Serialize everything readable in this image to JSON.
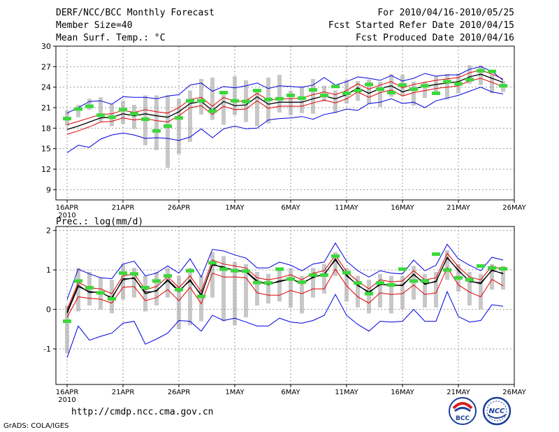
{
  "header": {
    "title": "DERF/NCC/BCC Monthly Forecast",
    "member_size": "Member Size=40",
    "variable": "Mean Surf. Temp.: °C",
    "forecast_window": "For 2010/04/16-2010/05/25",
    "refer_date": "Fcst Started Refer Date 2010/04/15",
    "produced_date": "Fcst Produced Date 2010/04/16"
  },
  "footer": {
    "url": "http://cmdp.ncc.cma.gov.cn",
    "credit": "GrADS: COLA/IGES",
    "logo_bcc": "BCC",
    "logo_ncc": "NCC"
  },
  "colors": {
    "ensemble_mean": "#000000",
    "inner_band": "#e00000",
    "outer_band": "#0000e0",
    "member_box": "#c8c8c8",
    "observed": "#3ad83a",
    "grid": "#9a9a9a"
  },
  "chart_data": [
    {
      "type": "line",
      "title": "Mean Surf. Temp.: °C",
      "x_tick_labels": [
        "16APR",
        "21APR",
        "26APR",
        "1MAY",
        "6MAY",
        "11MAY",
        "16MAY",
        "21MAY",
        "26MAY"
      ],
      "x_year_label": "2010",
      "x_tick_days": [
        0,
        5,
        10,
        15,
        20,
        25,
        30,
        35,
        40
      ],
      "ylim": [
        7.5,
        30
      ],
      "y_ticks": [
        9,
        12,
        15,
        18,
        21,
        24,
        27,
        30
      ],
      "series": [
        {
          "name": "ensemble mean",
          "values": [
            17.8,
            18.3,
            18.9,
            19.5,
            19.6,
            20.1,
            19.8,
            20.1,
            19.8,
            19.6,
            20.4,
            21.6,
            21.9,
            20.6,
            21.9,
            21.3,
            21.4,
            22.6,
            21.5,
            21.8,
            21.8,
            21.8,
            22.3,
            22.7,
            22.3,
            22.9,
            23.9,
            23.1,
            23.8,
            24.2,
            23.3,
            23.8,
            24.1,
            24.4,
            24.6,
            24.8,
            25.5,
            25.9,
            25.3,
            24.7
          ]
        },
        {
          "name": "inner upper",
          "values": [
            18.5,
            19.0,
            19.5,
            20.0,
            20.1,
            20.6,
            20.3,
            20.7,
            20.4,
            20.2,
            21.0,
            22.2,
            22.5,
            21.2,
            22.5,
            21.9,
            22.0,
            23.1,
            22.1,
            22.3,
            22.3,
            22.4,
            22.9,
            23.3,
            22.9,
            23.5,
            24.5,
            23.7,
            24.3,
            24.8,
            23.9,
            24.4,
            24.7,
            25.0,
            25.2,
            25.4,
            26.1,
            26.5,
            25.9,
            25.2
          ]
        },
        {
          "name": "inner lower",
          "values": [
            17.1,
            17.6,
            18.2,
            18.9,
            19.0,
            19.5,
            19.2,
            19.4,
            19.1,
            18.9,
            19.8,
            21.0,
            21.3,
            20.0,
            21.2,
            20.7,
            20.8,
            22.0,
            20.9,
            21.2,
            21.2,
            21.2,
            21.7,
            22.1,
            21.7,
            22.3,
            23.3,
            22.5,
            23.2,
            23.6,
            22.7,
            23.2,
            23.5,
            23.8,
            24.0,
            24.2,
            24.9,
            25.3,
            24.7,
            24.1
          ]
        },
        {
          "name": "outer upper",
          "values": [
            20.2,
            21.0,
            21.9,
            22.0,
            21.5,
            22.6,
            22.5,
            22.5,
            22.3,
            22.7,
            22.9,
            24.3,
            24.6,
            23.4,
            24.1,
            23.9,
            24.2,
            24.6,
            23.8,
            24.2,
            24.1,
            24.0,
            24.3,
            25.4,
            24.3,
            24.8,
            25.5,
            25.3,
            25.0,
            25.7,
            24.9,
            25.3,
            26.0,
            25.6,
            25.8,
            25.8,
            26.6,
            27.0,
            26.3,
            25.0
          ]
        },
        {
          "name": "outer lower",
          "values": [
            14.4,
            15.5,
            15.2,
            16.4,
            17.0,
            17.3,
            17.0,
            16.5,
            16.6,
            16.5,
            16.2,
            16.7,
            17.9,
            16.6,
            17.9,
            18.3,
            17.9,
            18.0,
            19.2,
            19.4,
            19.5,
            19.7,
            19.3,
            20.0,
            20.3,
            20.8,
            20.6,
            21.6,
            21.8,
            22.3,
            21.6,
            21.8,
            21.0,
            22.0,
            22.4,
            22.8,
            23.4,
            24.0,
            23.3,
            23.0
          ]
        }
      ],
      "member_ranges": [
        [
          18.3,
          20.6
        ],
        [
          19.6,
          21.4
        ],
        [
          20.7,
          22.3
        ],
        [
          19.0,
          22.5
        ],
        [
          18.3,
          21.5
        ],
        [
          18.6,
          22.0
        ],
        [
          17.9,
          21.4
        ],
        [
          15.5,
          22.8
        ],
        [
          14.8,
          22.8
        ],
        [
          12.2,
          22.8
        ],
        [
          14.2,
          22.3
        ],
        [
          16.0,
          23.5
        ],
        [
          20.0,
          25.2
        ],
        [
          19.2,
          25.4
        ],
        [
          18.5,
          22.9
        ],
        [
          19.9,
          25.6
        ],
        [
          18.9,
          25.0
        ],
        [
          18.3,
          23.7
        ],
        [
          18.7,
          25.4
        ],
        [
          20.3,
          25.8
        ],
        [
          19.9,
          23.5
        ],
        [
          20.2,
          24.1
        ],
        [
          20.1,
          25.2
        ],
        [
          21.9,
          24.2
        ],
        [
          20.2,
          23.5
        ],
        [
          21.6,
          25.1
        ],
        [
          22.0,
          24.9
        ],
        [
          21.5,
          25.1
        ],
        [
          21.1,
          24.8
        ],
        [
          22.6,
          25.9
        ],
        [
          22.8,
          25.8
        ],
        [
          21.3,
          24.8
        ],
        [
          22.4,
          24.8
        ],
        [
          23.0,
          25.6
        ],
        [
          22.2,
          25.9
        ],
        [
          23.1,
          26.0
        ],
        [
          24.5,
          27.2
        ],
        [
          24.3,
          27.2
        ],
        [
          23.1,
          25.8
        ],
        [
          23.3,
          24.9
        ]
      ],
      "observed": [
        19.4,
        20.8,
        21.2,
        19.9,
        19.6,
        20.7,
        20.1,
        19.3,
        17.6,
        18.3,
        19.5,
        22.0,
        22.0,
        20.5,
        23.2,
        22.0,
        21.9,
        23.5,
        22.2,
        22.3,
        22.8,
        22.4,
        23.6,
        22.8,
        24.1,
        23.1,
        23.5,
        24.4,
        23.7,
        23.2,
        24.3,
        23.7,
        24.2,
        23.1,
        24.8,
        24.5,
        25.1,
        26.4,
        26.3,
        24.2
      ]
    },
    {
      "type": "line",
      "title": "Prec.: log(mm/d)",
      "x_tick_labels": [
        "16APR",
        "21APR",
        "26APR",
        "1MAY",
        "6MAY",
        "11MAY",
        "16MAY",
        "21MAY",
        "26MAY"
      ],
      "x_year_label": "2010",
      "x_tick_days": [
        0,
        5,
        10,
        15,
        20,
        25,
        30,
        35,
        40
      ],
      "ylim": [
        -1.9,
        2.1
      ],
      "y_ticks": [
        -1,
        0,
        1,
        2
      ],
      "series": [
        {
          "name": "ensemble mean",
          "values": [
            -0.1,
            0.58,
            0.45,
            0.42,
            0.3,
            0.75,
            0.8,
            0.4,
            0.48,
            0.73,
            0.45,
            0.75,
            0.35,
            1.15,
            1.05,
            1.0,
            0.95,
            0.7,
            0.65,
            0.7,
            0.78,
            0.65,
            0.82,
            0.88,
            1.28,
            0.85,
            0.62,
            0.42,
            0.65,
            0.6,
            0.62,
            0.88,
            0.65,
            0.7,
            1.32,
            0.98,
            0.72,
            0.65,
            1.0,
            0.9
          ]
        },
        {
          "name": "inner upper",
          "values": [
            0.0,
            0.68,
            0.55,
            0.52,
            0.4,
            0.85,
            0.9,
            0.5,
            0.58,
            0.83,
            0.55,
            0.85,
            0.45,
            1.25,
            1.15,
            1.1,
            1.05,
            0.8,
            0.75,
            0.8,
            0.88,
            0.75,
            0.92,
            0.98,
            1.38,
            0.95,
            0.72,
            0.52,
            0.75,
            0.7,
            0.72,
            0.98,
            0.75,
            0.8,
            1.42,
            1.08,
            0.82,
            0.75,
            1.1,
            1.0
          ]
        },
        {
          "name": "inner lower",
          "values": [
            -0.2,
            0.32,
            0.28,
            0.26,
            0.16,
            0.56,
            0.58,
            0.22,
            0.3,
            0.5,
            0.22,
            0.56,
            0.14,
            0.92,
            0.82,
            0.82,
            0.8,
            0.42,
            0.36,
            0.36,
            0.48,
            0.4,
            0.52,
            0.52,
            1.02,
            0.6,
            0.32,
            0.16,
            0.42,
            0.38,
            0.4,
            0.62,
            0.38,
            0.42,
            1.06,
            0.62,
            0.44,
            0.32,
            0.76,
            0.6
          ]
        },
        {
          "name": "outer upper",
          "values": [
            0.25,
            1.02,
            0.9,
            0.8,
            0.78,
            1.15,
            1.22,
            0.85,
            0.92,
            1.1,
            0.92,
            1.28,
            0.82,
            1.52,
            1.48,
            1.38,
            1.3,
            1.05,
            1.05,
            1.2,
            1.12,
            0.98,
            1.15,
            1.2,
            1.68,
            1.22,
            0.98,
            0.82,
            0.98,
            0.92,
            0.9,
            1.25,
            0.98,
            1.12,
            1.65,
            1.28,
            1.12,
            0.98,
            1.32,
            1.25
          ]
        },
        {
          "name": "outer lower",
          "values": [
            -1.22,
            -0.42,
            -0.78,
            -0.68,
            -0.6,
            -0.35,
            -0.3,
            -0.88,
            -0.75,
            -0.6,
            -0.28,
            -0.3,
            -0.55,
            -0.15,
            -0.28,
            -0.22,
            -0.32,
            -0.42,
            -0.42,
            -0.22,
            -0.32,
            -0.35,
            -0.28,
            -0.15,
            0.38,
            -0.15,
            -0.38,
            -0.55,
            -0.3,
            -0.32,
            -0.3,
            0.0,
            -0.3,
            -0.3,
            0.45,
            -0.18,
            -0.32,
            -0.28,
            0.12,
            0.08
          ]
        },
        {
          "name": "ensemble median",
          "values": [
            -0.06,
            0.62,
            0.42,
            0.45,
            0.27,
            0.78,
            0.78,
            0.44,
            0.46,
            0.76,
            0.48,
            0.72,
            0.38,
            1.12,
            1.08,
            0.97,
            0.97,
            0.73,
            0.62,
            0.73,
            0.76,
            0.68,
            0.8,
            0.9,
            1.25,
            0.88,
            0.6,
            0.45,
            0.62,
            0.63,
            0.6,
            0.9,
            0.63,
            0.72,
            1.3,
            1.0,
            0.7,
            0.68,
            0.98,
            0.92
          ]
        }
      ],
      "member_ranges": [
        [
          -1.1,
          0.1
        ],
        [
          -0.05,
          1.05
        ],
        [
          0.1,
          0.95
        ],
        [
          0.0,
          0.8
        ],
        [
          -0.1,
          0.75
        ],
        [
          0.25,
          1.15
        ],
        [
          0.3,
          1.05
        ],
        [
          -0.05,
          0.85
        ],
        [
          0.1,
          0.95
        ],
        [
          0.3,
          1.05
        ],
        [
          -0.5,
          0.85
        ],
        [
          -0.4,
          1.05
        ],
        [
          -0.3,
          0.85
        ],
        [
          0.3,
          1.45
        ],
        [
          -0.3,
          1.35
        ],
        [
          -0.4,
          1.2
        ],
        [
          -0.2,
          1.15
        ],
        [
          0.1,
          0.95
        ],
        [
          0.15,
          0.9
        ],
        [
          0.2,
          1.05
        ],
        [
          0.05,
          1.05
        ],
        [
          -0.1,
          0.85
        ],
        [
          0.3,
          1.05
        ],
        [
          0.4,
          1.15
        ],
        [
          0.85,
          1.45
        ],
        [
          0.2,
          1.05
        ],
        [
          0.05,
          0.85
        ],
        [
          -0.1,
          0.75
        ],
        [
          0.05,
          0.9
        ],
        [
          -0.1,
          0.85
        ],
        [
          0.0,
          0.85
        ],
        [
          0.25,
          1.1
        ],
        [
          0.05,
          0.9
        ],
        [
          0.05,
          0.95
        ],
        [
          0.75,
          1.5
        ],
        [
          0.45,
          1.15
        ],
        [
          0.1,
          0.95
        ],
        [
          0.0,
          0.9
        ],
        [
          0.5,
          1.15
        ],
        [
          0.5,
          1.1
        ]
      ],
      "observed": [
        -0.3,
        0.72,
        0.55,
        0.42,
        0.27,
        0.92,
        0.9,
        0.55,
        0.72,
        0.85,
        0.5,
        0.98,
        0.33,
        1.18,
        1.02,
        0.98,
        0.97,
        0.68,
        0.67,
        1.02,
        0.77,
        0.69,
        0.87,
        0.87,
        1.35,
        0.93,
        0.67,
        0.4,
        0.67,
        0.62,
        1.02,
        0.72,
        0.72,
        1.4,
        1.0,
        0.8,
        0.75,
        1.1,
        1.05,
        1.03
      ]
    }
  ]
}
